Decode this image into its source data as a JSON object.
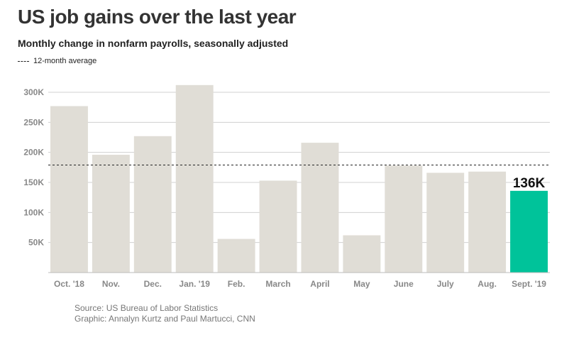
{
  "chart_data": {
    "type": "bar",
    "title": "US job gains over the last year",
    "subtitle": "Monthly change in nonfarm payrolls, seasonally adjusted",
    "legend": [
      {
        "label": "12-month average",
        "style": "dashed"
      }
    ],
    "categories": [
      "Oct. '18",
      "Nov.",
      "Dec.",
      "Jan. '19",
      "Feb.",
      "March",
      "April",
      "May",
      "June",
      "July",
      "Aug.",
      "Sept. '19"
    ],
    "values": [
      277,
      196,
      227,
      312,
      56,
      153,
      216,
      62,
      178,
      166,
      168,
      136
    ],
    "value_unit": "K",
    "average": 179,
    "highlight_index": 11,
    "highlight_label": "136K",
    "ylim": [
      0,
      300
    ],
    "yticks": [
      {
        "value": 50,
        "label": "50K"
      },
      {
        "value": 100,
        "label": "100K"
      },
      {
        "value": 150,
        "label": "150K"
      },
      {
        "value": 200,
        "label": "200K"
      },
      {
        "value": 250,
        "label": "250K"
      },
      {
        "value": 300,
        "label": "300K"
      }
    ],
    "grid": true,
    "colors": {
      "bar": "#e0ddd6",
      "highlight": "#00c39a",
      "grid": "#d0d0d0",
      "average_line": "#222222",
      "tick_text": "#888888"
    }
  },
  "source": {
    "line1": "Source: US Bureau of Labor Statistics",
    "line2": "Graphic: Annalyn Kurtz and Paul Martucci, CNN"
  }
}
